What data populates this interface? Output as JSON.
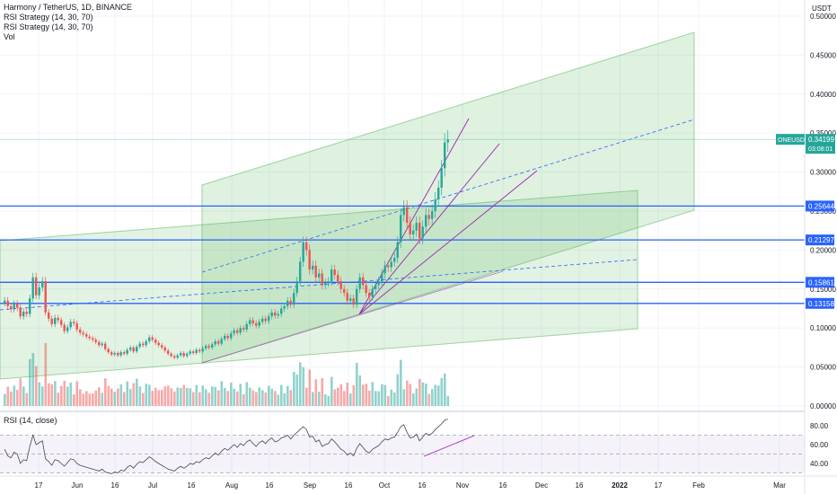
{
  "legend": {
    "symbol_line": "Harmony / TetherUS, 1D, BINANCE",
    "indicator1": "RSI Strategy (14, 30, 70)",
    "indicator2": "RSI Strategy (14, 30, 70)",
    "volume": "Vol"
  },
  "rsi_label": "RSI (14, close)",
  "currency": "USDT",
  "price_tag": {
    "symbol": "ONEUSDT",
    "value": "0.34199",
    "countdown": "03:08:01"
  },
  "horizontal_levels": [
    {
      "label": "0.25644",
      "value": 0.25644
    },
    {
      "label": "0.21297",
      "value": 0.21297
    },
    {
      "label": "0.15861",
      "value": 0.15861
    },
    {
      "label": "0.13158",
      "value": 0.13158
    }
  ],
  "colors": {
    "up": "#26a69a",
    "down": "#ef5350",
    "level": "#2962ff",
    "channel_fill": "#4caf50",
    "fan": "#9c27b0",
    "price_tag": "#26a69a",
    "rsi_band": "#7e57c2"
  },
  "chart_data": {
    "type": "candlestick",
    "y_axis": {
      "ticks": [
        "0.50000",
        "0.45000",
        "0.40000",
        "0.35000",
        "0.30000",
        "0.25000",
        "0.20000",
        "0.15000",
        "0.10000",
        "0.05000",
        "0.00000"
      ],
      "range": [
        0,
        0.5
      ]
    },
    "x_axis": {
      "ticks": [
        "17",
        "Jun",
        "16",
        "Jul",
        "16",
        "Aug",
        "16",
        "Sep",
        "16",
        "Oct",
        "16",
        "Nov",
        "16",
        "Dec",
        "16",
        "2022",
        "17",
        "Feb",
        "Mar"
      ]
    },
    "rsi_axis": {
      "ticks": [
        "80.00",
        "60.00",
        "40.00"
      ],
      "overbought": 70,
      "oversold": 30,
      "range": [
        25,
        90
      ]
    },
    "closes": [
      0.135,
      0.128,
      0.124,
      0.131,
      0.126,
      0.115,
      0.121,
      0.118,
      0.138,
      0.165,
      0.142,
      0.152,
      0.16,
      0.12,
      0.112,
      0.105,
      0.113,
      0.11,
      0.104,
      0.096,
      0.101,
      0.108,
      0.106,
      0.098,
      0.094,
      0.092,
      0.089,
      0.087,
      0.085,
      0.082,
      0.078,
      0.08,
      0.073,
      0.069,
      0.066,
      0.068,
      0.065,
      0.069,
      0.067,
      0.072,
      0.075,
      0.07,
      0.076,
      0.08,
      0.078,
      0.083,
      0.088,
      0.085,
      0.081,
      0.078,
      0.075,
      0.071,
      0.067,
      0.064,
      0.062,
      0.065,
      0.068,
      0.064,
      0.067,
      0.07,
      0.068,
      0.072,
      0.07,
      0.074,
      0.077,
      0.075,
      0.079,
      0.083,
      0.08,
      0.086,
      0.09,
      0.087,
      0.093,
      0.097,
      0.094,
      0.1,
      0.098,
      0.105,
      0.11,
      0.106,
      0.103,
      0.108,
      0.112,
      0.109,
      0.115,
      0.12,
      0.116,
      0.118,
      0.125,
      0.128,
      0.135,
      0.13,
      0.145,
      0.16,
      0.185,
      0.21,
      0.2,
      0.175,
      0.18,
      0.165,
      0.17,
      0.155,
      0.158,
      0.16,
      0.175,
      0.168,
      0.16,
      0.15,
      0.145,
      0.135,
      0.138,
      0.13,
      0.15,
      0.165,
      0.155,
      0.145,
      0.14,
      0.15,
      0.155,
      0.16,
      0.17,
      0.18,
      0.178,
      0.185,
      0.19,
      0.21,
      0.245,
      0.255,
      0.235,
      0.22,
      0.225,
      0.235,
      0.215,
      0.23,
      0.245,
      0.24,
      0.25,
      0.265,
      0.28,
      0.305,
      0.338,
      0.342
    ],
    "rsi": [
      55,
      48,
      46,
      52,
      50,
      40,
      44,
      43,
      58,
      70,
      60,
      62,
      64,
      45,
      42,
      38,
      44,
      43,
      40,
      37,
      41,
      45,
      44,
      40,
      38,
      37,
      36,
      35,
      34,
      33,
      32,
      34,
      31,
      30,
      29,
      31,
      30,
      33,
      32,
      36,
      38,
      35,
      39,
      42,
      41,
      44,
      47,
      45,
      42,
      40,
      38,
      36,
      34,
      33,
      32,
      35,
      37,
      35,
      37,
      40,
      39,
      42,
      41,
      44,
      46,
      45,
      48,
      51,
      49,
      53,
      56,
      54,
      57,
      60,
      57,
      61,
      59,
      63,
      65,
      61,
      58,
      62,
      64,
      61,
      65,
      67,
      63,
      64,
      67,
      68,
      70,
      66,
      70,
      73,
      76,
      79,
      76,
      68,
      69,
      63,
      65,
      58,
      60,
      61,
      66,
      63,
      59,
      55,
      53,
      49,
      51,
      48,
      56,
      61,
      57,
      53,
      51,
      55,
      57,
      59,
      63,
      66,
      65,
      67,
      68,
      73,
      79,
      81,
      73,
      67,
      68,
      71,
      64,
      68,
      72,
      70,
      72,
      76,
      79,
      82,
      86,
      87
    ]
  }
}
